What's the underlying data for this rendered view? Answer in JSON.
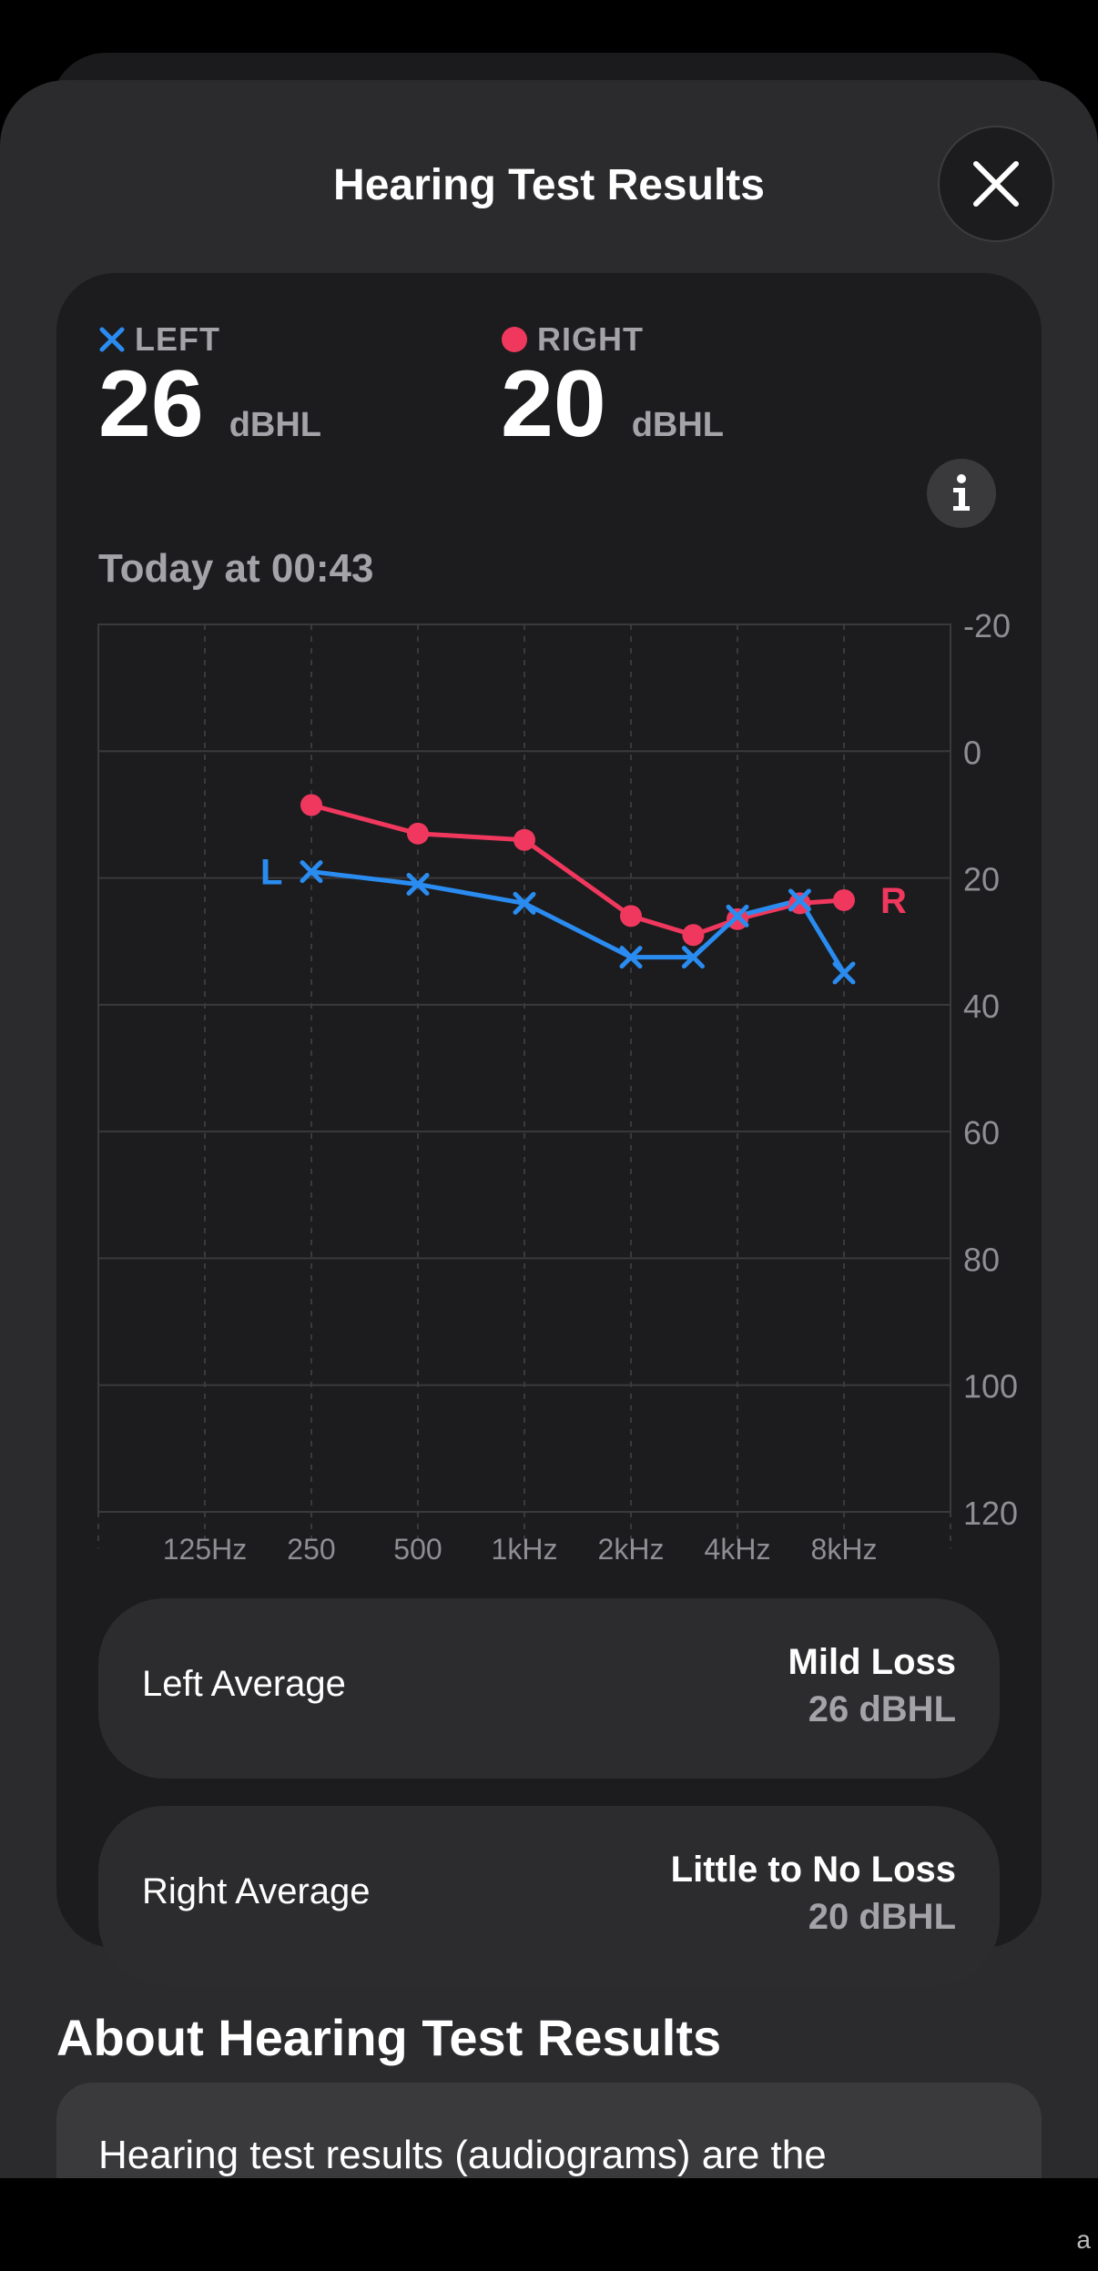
{
  "header": {
    "title": "Hearing Test Results"
  },
  "summary": {
    "left": {
      "label": "LEFT",
      "value": "26",
      "unit": "dBHL",
      "color": "#2a8cf0"
    },
    "right": {
      "label": "RIGHT",
      "value": "20",
      "unit": "dBHL",
      "color": "#f0385e"
    },
    "timestamp": "Today at 00:43"
  },
  "chart_data": {
    "type": "line",
    "title": "",
    "xlabel": "",
    "ylabel": "",
    "x_tick_labels": [
      "125Hz",
      "250",
      "500",
      "1kHz",
      "2kHz",
      "4kHz",
      "8kHz"
    ],
    "y_ticks": [
      -20,
      0,
      20,
      40,
      60,
      80,
      100,
      120
    ],
    "ylim": [
      -20,
      120
    ],
    "y_inverted": true,
    "y_axis_side": "right",
    "grid": true,
    "series": [
      {
        "name": "L",
        "marker": "x",
        "color": "#2a8cf0",
        "x_hz": [
          250,
          500,
          1000,
          2000,
          3000,
          4000,
          6000,
          8000
        ],
        "values": [
          19,
          21,
          24,
          32.5,
          32.5,
          26,
          23.5,
          35
        ]
      },
      {
        "name": "R",
        "marker": "circle",
        "color": "#f0385e",
        "x_hz": [
          250,
          500,
          1000,
          2000,
          3000,
          4000,
          6000,
          8000
        ],
        "values": [
          8.5,
          13,
          14,
          26,
          29,
          26.5,
          24,
          23.5
        ]
      }
    ]
  },
  "averages": [
    {
      "label": "Left Average",
      "classification": "Mild Loss",
      "value": "26 dBHL"
    },
    {
      "label": "Right Average",
      "classification": "Little to No Loss",
      "value": "20 dBHL"
    }
  ],
  "about": {
    "title": "About Hearing Test Results",
    "body": "Hearing test results (audiograms) are the"
  }
}
